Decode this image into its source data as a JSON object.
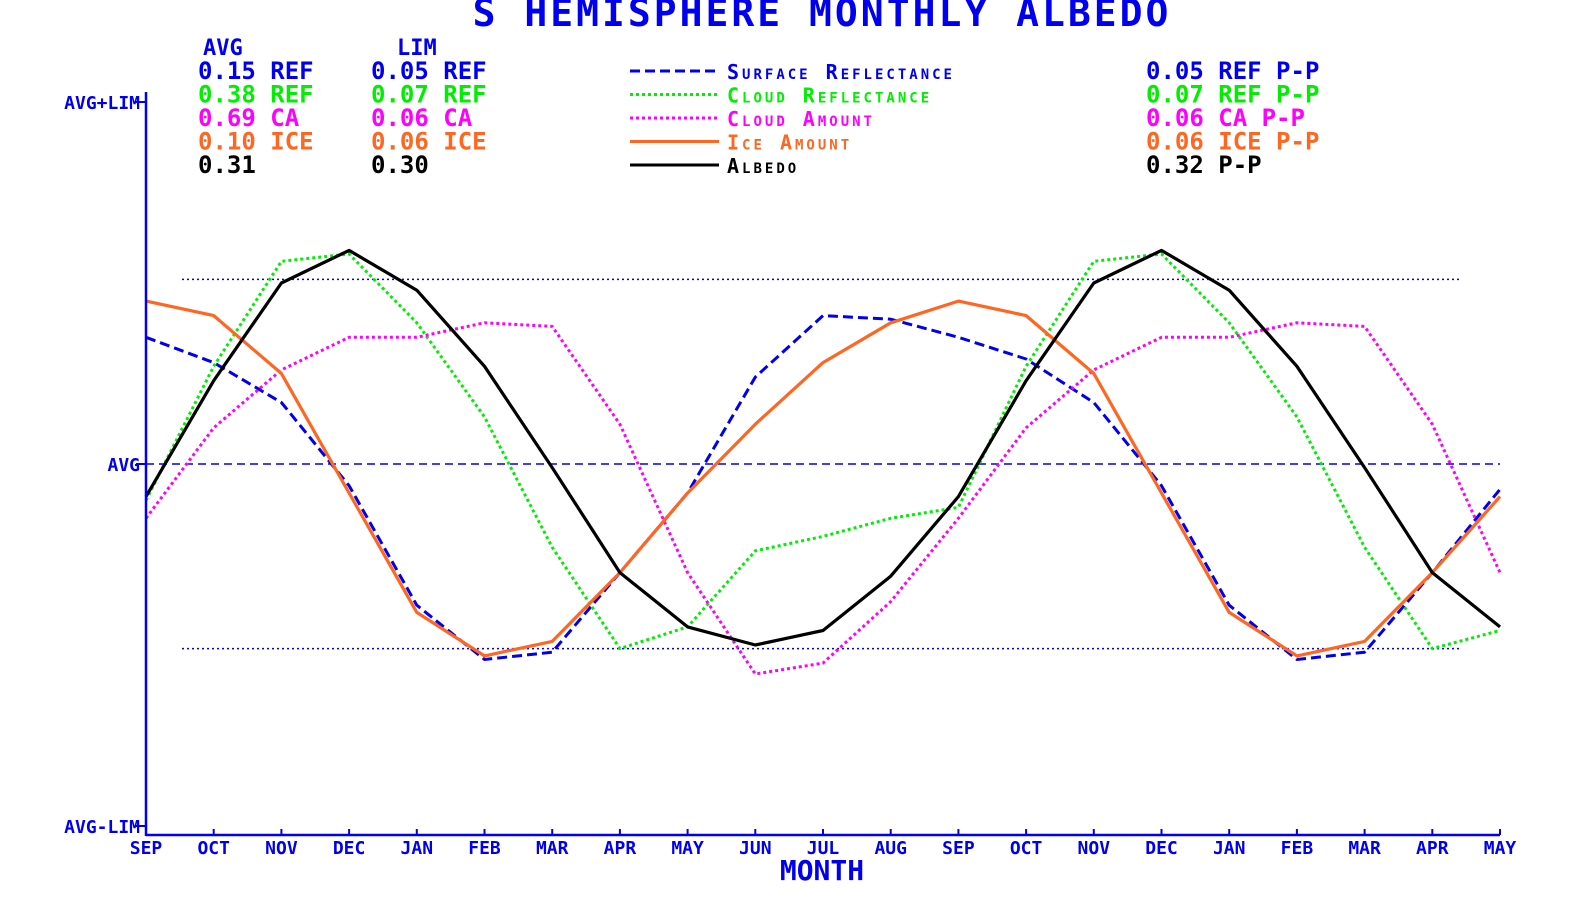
{
  "colors": {
    "axis": "#0000ee",
    "surface": "#0000ee",
    "cloud": "#00ee00",
    "cloudamt": "#ff00ff",
    "ice": "#ff6622",
    "albedo": "#000000"
  },
  "chart_data": {
    "type": "line",
    "title": "S HEMISPHERE MONTHLY ALBEDO",
    "xlabel": "MONTH",
    "ylabel": "",
    "y_tick_labels": [
      "AVG+LIM",
      "AVG",
      "AVG-LIM"
    ],
    "ylim": [
      -1,
      1
    ],
    "grid": false,
    "categories": [
      "SEP",
      "OCT",
      "NOV",
      "DEC",
      "JAN",
      "FEB",
      "MAR",
      "APR",
      "MAY",
      "JUN",
      "JUL",
      "AUG",
      "SEP",
      "OCT",
      "NOV",
      "DEC",
      "JAN",
      "FEB",
      "MAR",
      "APR",
      "MAY"
    ],
    "reference_lines": [
      {
        "label": "AVG",
        "value": 0
      },
      {
        "label": "",
        "value": 0.51
      },
      {
        "label": "",
        "value": -0.51
      }
    ],
    "series": [
      {
        "name": "Surface Reflectance",
        "style": "dashed",
        "color_key": "surface",
        "values": [
          0.35,
          0.28,
          0.17,
          -0.06,
          -0.39,
          -0.54,
          -0.52,
          -0.3,
          -0.08,
          0.24,
          0.41,
          0.4,
          0.35,
          0.29,
          0.17,
          -0.06,
          -0.39,
          -0.54,
          -0.52,
          -0.3,
          -0.07
        ]
      },
      {
        "name": "Cloud Reflectance",
        "style": "dotted",
        "color_key": "cloud",
        "values": [
          -0.1,
          0.27,
          0.56,
          0.58,
          0.39,
          0.13,
          -0.23,
          -0.51,
          -0.45,
          -0.24,
          -0.2,
          -0.15,
          -0.12,
          0.27,
          0.56,
          0.58,
          0.39,
          0.13,
          -0.23,
          -0.51,
          -0.46
        ]
      },
      {
        "name": "Cloud Amount",
        "style": "dotted",
        "color_key": "cloudamt",
        "values": [
          -0.15,
          0.1,
          0.26,
          0.35,
          0.35,
          0.39,
          0.38,
          0.11,
          -0.3,
          -0.58,
          -0.55,
          -0.38,
          -0.15,
          0.1,
          0.26,
          0.35,
          0.35,
          0.39,
          0.38,
          0.11,
          -0.3
        ]
      },
      {
        "name": "Ice Amount",
        "style": "solid",
        "color_key": "ice",
        "values": [
          0.45,
          0.41,
          0.25,
          -0.08,
          -0.41,
          -0.53,
          -0.49,
          -0.3,
          -0.08,
          0.11,
          0.28,
          0.39,
          0.45,
          0.41,
          0.25,
          -0.08,
          -0.41,
          -0.53,
          -0.49,
          -0.3,
          -0.09
        ]
      },
      {
        "name": "Albedo",
        "style": "solid",
        "color_key": "albedo",
        "values": [
          -0.09,
          0.23,
          0.5,
          0.59,
          0.48,
          0.27,
          -0.01,
          -0.3,
          -0.45,
          -0.5,
          -0.46,
          -0.31,
          -0.09,
          0.23,
          0.5,
          0.59,
          0.48,
          0.27,
          -0.01,
          -0.3,
          -0.45
        ]
      }
    ]
  },
  "legend": {
    "avg_header": "AVG",
    "lim_header": "LIM",
    "rows": [
      {
        "avg": "0.15 REF",
        "lim": "0.05 REF",
        "label": "Surface Reflectance",
        "pp": "0.05 REF P-P",
        "color_key": "surface",
        "style": "dashed"
      },
      {
        "avg": "0.38 REF",
        "lim": "0.07 REF",
        "label": "Cloud Reflectance",
        "pp": "0.07 REF P-P",
        "color_key": "cloud",
        "style": "dotted"
      },
      {
        "avg": "0.69 CA",
        "lim": "0.06 CA",
        "label": "Cloud Amount",
        "pp": "0.06 CA P-P",
        "color_key": "cloudamt",
        "style": "dotted"
      },
      {
        "avg": "0.10 ICE",
        "lim": "0.06 ICE",
        "label": "Ice Amount",
        "pp": "0.06 ICE P-P",
        "color_key": "ice",
        "style": "solid"
      },
      {
        "avg": "0.31",
        "lim": "0.30",
        "label": "Albedo",
        "pp": "0.32  P-P",
        "color_key": "albedo",
        "style": "solid"
      }
    ]
  }
}
